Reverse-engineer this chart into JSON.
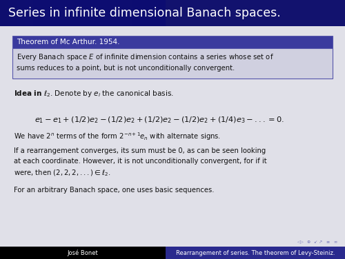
{
  "title": "Series in infinite dimensional Banach spaces.",
  "title_bg_left": "#0a0a3a",
  "title_bg_right": "#3a3a9e",
  "title_fg": "#ffffff",
  "slide_bg": "#e0e0e8",
  "theorem_box_header": "Theorem of Mc Arthur. 1954.",
  "theorem_box_header_bg": "#3a3a9e",
  "theorem_box_header_fg": "#ffffff",
  "theorem_box_bg": "#d0d0e0",
  "theorem_box_border": "#5555aa",
  "footer_left": "José Bonet",
  "footer_right": "Rearrangement of series. The theorem of Levy-Steiniz.",
  "footer_left_bg": "#000000",
  "footer_right_bg": "#2a2a8e",
  "footer_fg": "#ffffff"
}
